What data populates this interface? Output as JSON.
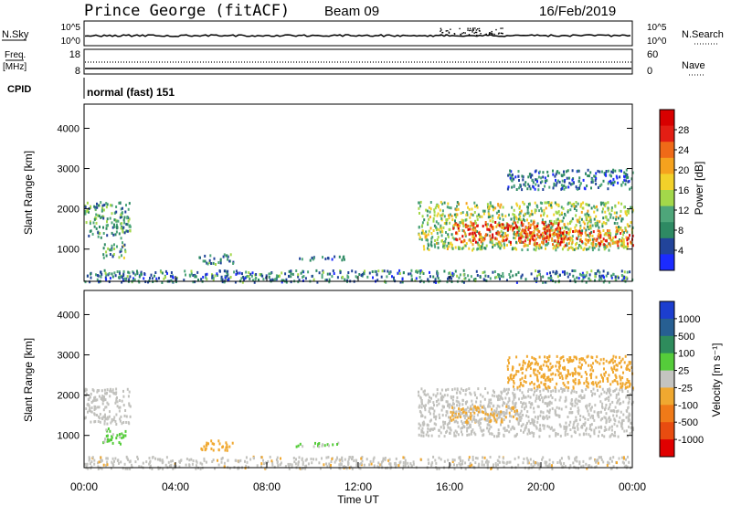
{
  "header": {
    "station": "Prince George (fitACF)",
    "beam": "Beam 09",
    "date": "16/Feb/2019"
  },
  "top_panels": {
    "nsky_label": "N.Sky",
    "nsky_scale": [
      "10^5",
      "10^0"
    ],
    "nsearch_label": "N.Search",
    "nsearch_scale": [
      "10^5",
      "10^0"
    ],
    "freq_label": "Freq.",
    "freq_unit": "[MHz]",
    "freq_scale": [
      "18",
      "8"
    ],
    "nave_label": "Nave",
    "nave_scale": [
      "60",
      "0"
    ],
    "cpid_label": "CPID",
    "cpid_value": "normal (fast) 151"
  },
  "colors": {
    "power": [
      "#1b2bff",
      "#22449a",
      "#2e8a63",
      "#4ea67a",
      "#a3d84a",
      "#f2d12a",
      "#f5a21e",
      "#ef6a18",
      "#e31e14",
      "#d80000"
    ],
    "velocity": [
      "#1c3ecf",
      "#275f92",
      "#2e8c5c",
      "#55cc3a",
      "#c4c4c0",
      "#f0a830",
      "#f07a18",
      "#e84c10",
      "#e00000"
    ],
    "velocity_ground": "#c0c0bc"
  },
  "chart_data": [
    {
      "type": "heatmap",
      "name": "power",
      "xlabel": "",
      "ylabel": "Slant Range [km]",
      "yticks": [
        "1000",
        "2000",
        "3000",
        "4000"
      ],
      "ylim": [
        200,
        4600
      ],
      "xlim": [
        0,
        24
      ],
      "colorbar": {
        "label": "Power [dB]",
        "ticks": [
          "4",
          "8",
          "12",
          "16",
          "20",
          "24",
          "28"
        ],
        "range": [
          0,
          32
        ]
      },
      "echo_regions": [
        {
          "t": [
            0.0,
            2.0
          ],
          "range": [
            1300,
            2200
          ],
          "value": "10"
        },
        {
          "t": [
            0.8,
            1.8
          ],
          "range": [
            800,
            1200
          ],
          "value": "11"
        },
        {
          "t": [
            5.0,
            6.5
          ],
          "range": [
            650,
            900
          ],
          "value": "8"
        },
        {
          "t": [
            9.2,
            11.5
          ],
          "range": [
            750,
            850
          ],
          "value": "6"
        },
        {
          "t": [
            14.6,
            24.0
          ],
          "range": [
            1000,
            2200
          ],
          "value": "14"
        },
        {
          "t": [
            16.0,
            21.0
          ],
          "range": [
            1200,
            1700
          ],
          "value": "26"
        },
        {
          "t": [
            19.0,
            24.0
          ],
          "range": [
            1100,
            1500
          ],
          "value": "24"
        },
        {
          "t": [
            18.5,
            24.0
          ],
          "range": [
            2500,
            3000
          ],
          "value": "6"
        },
        {
          "t": [
            0.0,
            24.0
          ],
          "range": [
            200,
            500
          ],
          "value": "8"
        }
      ]
    },
    {
      "type": "heatmap",
      "name": "velocity",
      "xlabel": "Time UT",
      "ylabel": "Slant Range [km]",
      "xticks": [
        "00:00",
        "04:00",
        "08:00",
        "12:00",
        "16:00",
        "20:00",
        "00:00"
      ],
      "yticks": [
        "1000",
        "2000",
        "3000",
        "4000"
      ],
      "ylim": [
        200,
        4600
      ],
      "xlim": [
        0,
        24
      ],
      "colorbar": {
        "label": "Velocity [m s⁻¹]",
        "ticks": [
          "1000",
          "500",
          "100",
          "25",
          "-25",
          "-100",
          "-500",
          "-1000"
        ],
        "range": [
          -1000,
          1000
        ]
      },
      "echo_regions": [
        {
          "t": [
            0.0,
            2.0
          ],
          "range": [
            1300,
            2200
          ],
          "value": "0"
        },
        {
          "t": [
            0.8,
            1.8
          ],
          "range": [
            800,
            1200
          ],
          "value": "150"
        },
        {
          "t": [
            5.0,
            6.5
          ],
          "range": [
            650,
            900
          ],
          "value": "-200"
        },
        {
          "t": [
            9.2,
            11.5
          ],
          "range": [
            750,
            850
          ],
          "value": "120"
        },
        {
          "t": [
            14.6,
            24.0
          ],
          "range": [
            1000,
            2200
          ],
          "value": "0"
        },
        {
          "t": [
            16.0,
            19.0
          ],
          "range": [
            1350,
            1750
          ],
          "value": "-150"
        },
        {
          "t": [
            18.5,
            24.0
          ],
          "range": [
            2200,
            3000
          ],
          "value": "-200"
        },
        {
          "t": [
            0.0,
            24.0
          ],
          "range": [
            200,
            500
          ],
          "value": "-60"
        }
      ]
    }
  ]
}
